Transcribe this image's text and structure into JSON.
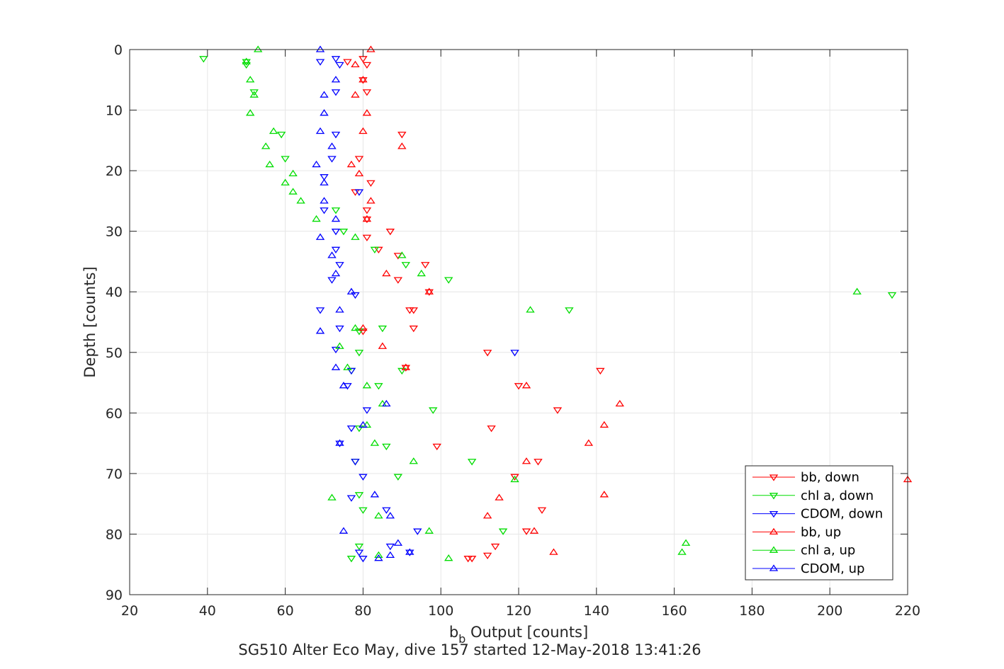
{
  "chart_data": {
    "type": "scatter",
    "title": "SG510 Alter Eco May, dive 157 started 12-May-2018 13:41:26",
    "xlabel": {
      "main": "b",
      "sub": "b",
      "rest": " Output [counts]"
    },
    "ylabel": "Depth [counts]",
    "xlim": [
      20,
      220
    ],
    "ylim": [
      0,
      90
    ],
    "y_reversed": true,
    "xticks": [
      "20",
      "40",
      "60",
      "80",
      "100",
      "120",
      "140",
      "160",
      "180",
      "200",
      "220"
    ],
    "yticks": [
      "0",
      "10",
      "20",
      "30",
      "40",
      "50",
      "60",
      "70",
      "80",
      "90"
    ],
    "grid": true,
    "legend_position": "bottom-right",
    "series": [
      {
        "name": "bb, down",
        "color": "#ff0000",
        "marker": "triangle-down",
        "points": [
          [
            76,
            2
          ],
          [
            81,
            2.5
          ],
          [
            80,
            1.5
          ],
          [
            80,
            5
          ],
          [
            81,
            7
          ],
          [
            82,
            22
          ],
          [
            79,
            18
          ],
          [
            90,
            14
          ],
          [
            78,
            23.5
          ],
          [
            81,
            26.5
          ],
          [
            81,
            28
          ],
          [
            87,
            30
          ],
          [
            81,
            31
          ],
          [
            84,
            33
          ],
          [
            89,
            34
          ],
          [
            89,
            38
          ],
          [
            96,
            35.5
          ],
          [
            97,
            40
          ],
          [
            93,
            43
          ],
          [
            92,
            43
          ],
          [
            93,
            46
          ],
          [
            80,
            46.5
          ],
          [
            112,
            50
          ],
          [
            91,
            52.5
          ],
          [
            141,
            53
          ],
          [
            120,
            55.5
          ],
          [
            130,
            59.5
          ],
          [
            113,
            62.5
          ],
          [
            99,
            65.5
          ],
          [
            125,
            68
          ],
          [
            119,
            70.5
          ],
          [
            126,
            76
          ],
          [
            122,
            79.5
          ],
          [
            114,
            82
          ],
          [
            112,
            83.5
          ],
          [
            108,
            84
          ],
          [
            107,
            84
          ]
        ]
      },
      {
        "name": "chl a, down",
        "color": "#00dd00",
        "marker": "triangle-down",
        "points": [
          [
            39,
            1.5
          ],
          [
            50,
            2
          ],
          [
            50,
            2.5
          ],
          [
            52,
            7
          ],
          [
            59,
            14
          ],
          [
            60,
            18
          ],
          [
            73,
            26.5
          ],
          [
            75,
            30
          ],
          [
            83,
            33
          ],
          [
            91,
            35.5
          ],
          [
            102,
            38
          ],
          [
            133,
            43
          ],
          [
            216,
            40.5
          ],
          [
            79,
            46.5
          ],
          [
            85,
            46
          ],
          [
            79,
            50
          ],
          [
            90,
            53
          ],
          [
            77,
            53
          ],
          [
            84,
            55.5
          ],
          [
            98,
            59.5
          ],
          [
            79,
            62.5
          ],
          [
            86,
            65.5
          ],
          [
            108,
            68
          ],
          [
            78,
            68
          ],
          [
            89,
            70.5
          ],
          [
            79,
            73.5
          ],
          [
            80,
            76
          ],
          [
            116,
            79.5
          ],
          [
            79,
            82
          ],
          [
            77,
            84
          ]
        ]
      },
      {
        "name": "CDOM, down",
        "color": "#0000ff",
        "marker": "triangle-down",
        "points": [
          [
            69,
            2
          ],
          [
            73,
            1.5
          ],
          [
            74,
            2.5
          ],
          [
            73,
            7
          ],
          [
            73,
            14
          ],
          [
            72,
            18
          ],
          [
            70,
            21
          ],
          [
            79,
            23.5
          ],
          [
            70,
            26.5
          ],
          [
            73,
            30
          ],
          [
            73,
            33
          ],
          [
            74,
            35.5
          ],
          [
            72,
            38
          ],
          [
            78,
            40.5
          ],
          [
            69,
            43
          ],
          [
            74,
            46
          ],
          [
            73,
            49.5
          ],
          [
            119,
            50
          ],
          [
            77,
            53
          ],
          [
            76,
            55.5
          ],
          [
            81,
            59.5
          ],
          [
            77,
            62.5
          ],
          [
            74,
            65
          ],
          [
            78,
            68
          ],
          [
            80,
            70.5
          ],
          [
            77,
            74
          ],
          [
            86,
            76
          ],
          [
            94,
            79.5
          ],
          [
            87,
            82
          ],
          [
            79,
            83
          ],
          [
            92,
            83
          ],
          [
            80,
            84
          ]
        ]
      },
      {
        "name": "bb, up",
        "color": "#ff0000",
        "marker": "triangle-up",
        "points": [
          [
            82,
            0
          ],
          [
            78,
            2.5
          ],
          [
            80,
            5
          ],
          [
            78,
            7.5
          ],
          [
            81,
            10.5
          ],
          [
            80,
            13.5
          ],
          [
            90,
            16
          ],
          [
            77,
            19
          ],
          [
            79,
            20.5
          ],
          [
            82,
            25
          ],
          [
            81,
            28
          ],
          [
            86,
            37
          ],
          [
            97,
            40
          ],
          [
            80,
            46
          ],
          [
            85,
            49
          ],
          [
            91,
            52.5
          ],
          [
            122,
            55.5
          ],
          [
            146,
            58.5
          ],
          [
            142,
            62
          ],
          [
            138,
            65
          ],
          [
            122,
            68
          ],
          [
            220,
            71
          ],
          [
            142,
            73.5
          ],
          [
            115,
            74
          ],
          [
            112,
            77
          ],
          [
            124,
            79.5
          ],
          [
            129,
            83
          ]
        ]
      },
      {
        "name": "chl a, up",
        "color": "#00dd00",
        "marker": "triangle-up",
        "points": [
          [
            53,
            0
          ],
          [
            50,
            2
          ],
          [
            51,
            5
          ],
          [
            52,
            7.5
          ],
          [
            51,
            10.5
          ],
          [
            57,
            13.5
          ],
          [
            55,
            16
          ],
          [
            56,
            19
          ],
          [
            62,
            20.5
          ],
          [
            60,
            22
          ],
          [
            62,
            23.5
          ],
          [
            64,
            25
          ],
          [
            68,
            28
          ],
          [
            78,
            31
          ],
          [
            90,
            34
          ],
          [
            95,
            37
          ],
          [
            207,
            40
          ],
          [
            123,
            43
          ],
          [
            78,
            46
          ],
          [
            74,
            49
          ],
          [
            76,
            52.5
          ],
          [
            81,
            55.5
          ],
          [
            85,
            58.5
          ],
          [
            81,
            62
          ],
          [
            83,
            65
          ],
          [
            93,
            68
          ],
          [
            119,
            71
          ],
          [
            72,
            74
          ],
          [
            84,
            77
          ],
          [
            97,
            79.5
          ],
          [
            163,
            81.5
          ],
          [
            162,
            83
          ],
          [
            84,
            83.5
          ],
          [
            102,
            84
          ]
        ]
      },
      {
        "name": "CDOM, up",
        "color": "#0000ff",
        "marker": "triangle-up",
        "points": [
          [
            69,
            0
          ],
          [
            73,
            5
          ],
          [
            70,
            7.5
          ],
          [
            70,
            10.5
          ],
          [
            69,
            13.5
          ],
          [
            72,
            16
          ],
          [
            68,
            19
          ],
          [
            70,
            22
          ],
          [
            70,
            25
          ],
          [
            73,
            28
          ],
          [
            69,
            31
          ],
          [
            72,
            34
          ],
          [
            73,
            37
          ],
          [
            77,
            40
          ],
          [
            74,
            43
          ],
          [
            69,
            46.5
          ],
          [
            73,
            52.5
          ],
          [
            75,
            55.5
          ],
          [
            86,
            58.5
          ],
          [
            80,
            62
          ],
          [
            74,
            65
          ],
          [
            83,
            73.5
          ],
          [
            87,
            77
          ],
          [
            75,
            79.5
          ],
          [
            89,
            81.5
          ],
          [
            92,
            83
          ],
          [
            87,
            83.5
          ],
          [
            84,
            84
          ]
        ]
      }
    ]
  }
}
